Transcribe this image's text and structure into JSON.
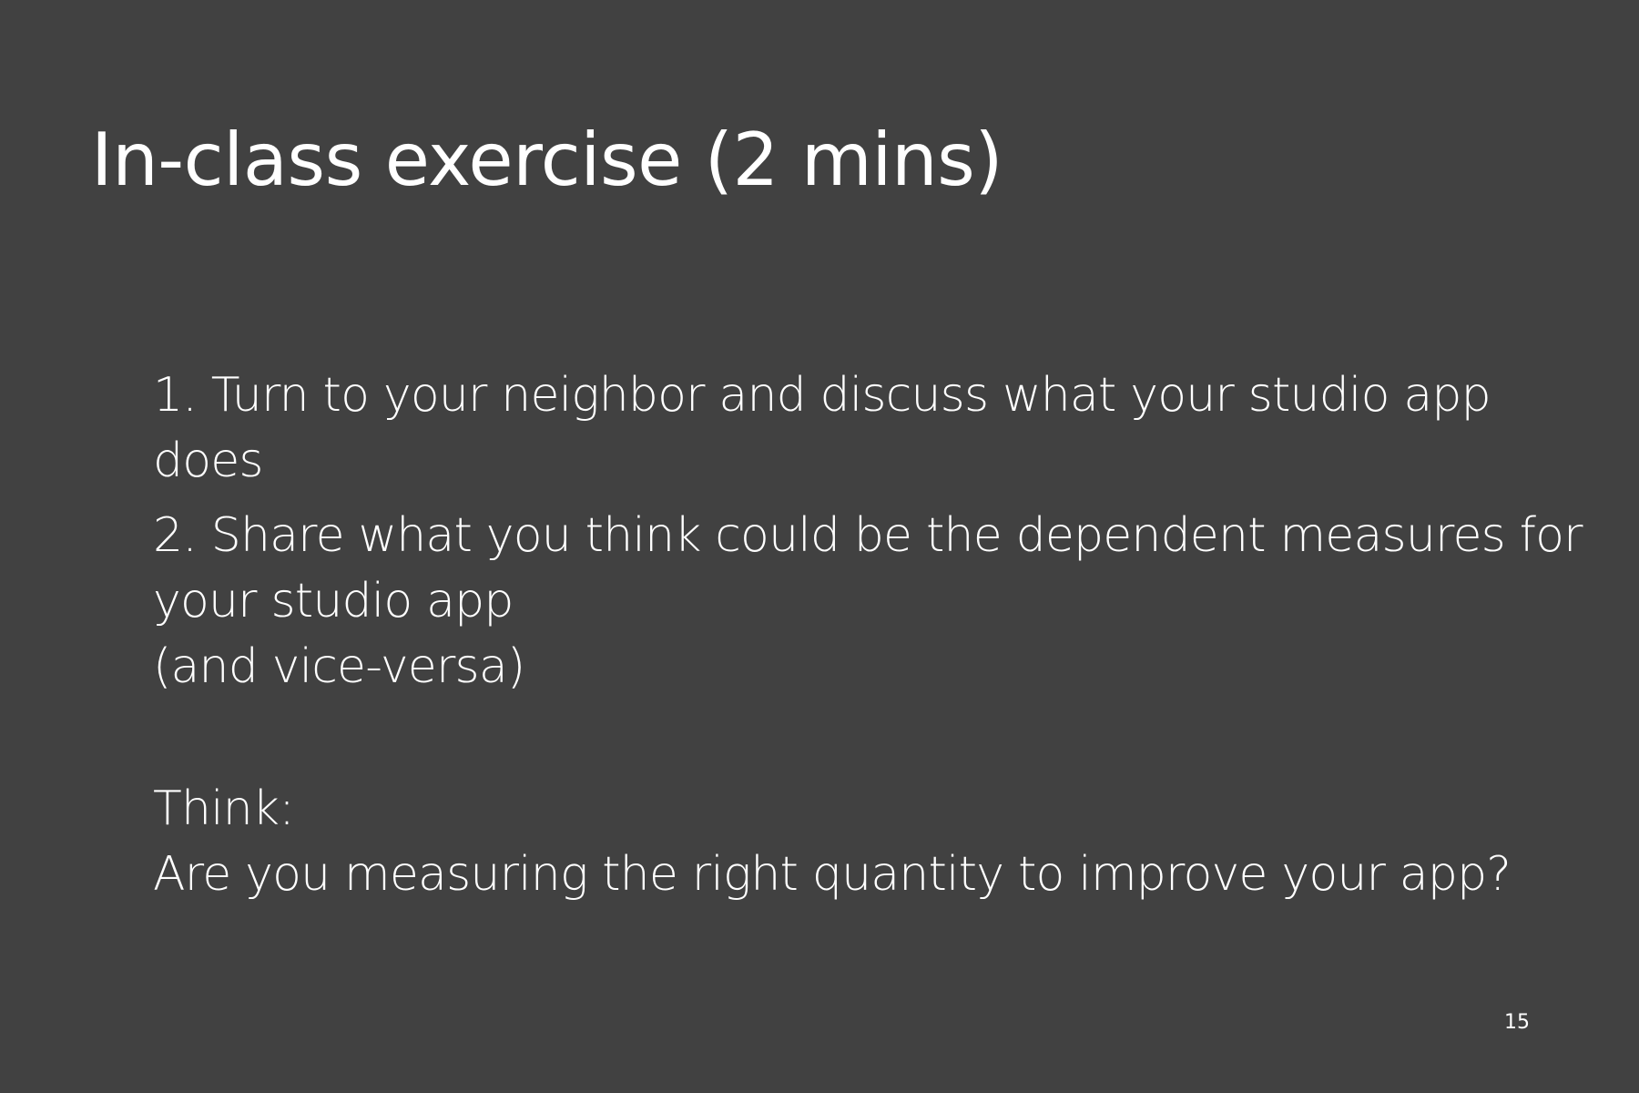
{
  "slide": {
    "title": "In-class exercise (2 mins)",
    "body": {
      "item1_line1": "1. Turn to your neighbor and discuss what your studio app",
      "item1_line2": "does",
      "item2_line1": "2. Share what you think could be the dependent measures for",
      "item2_line2": "your studio app",
      "item2_line3": "(and vice-versa)",
      "think_label": "Think:",
      "think_question": "Are you measuring the right quantity to improve your app?"
    },
    "page_number": "15"
  },
  "colors": {
    "background": "#414141",
    "text": "#ffffff"
  }
}
